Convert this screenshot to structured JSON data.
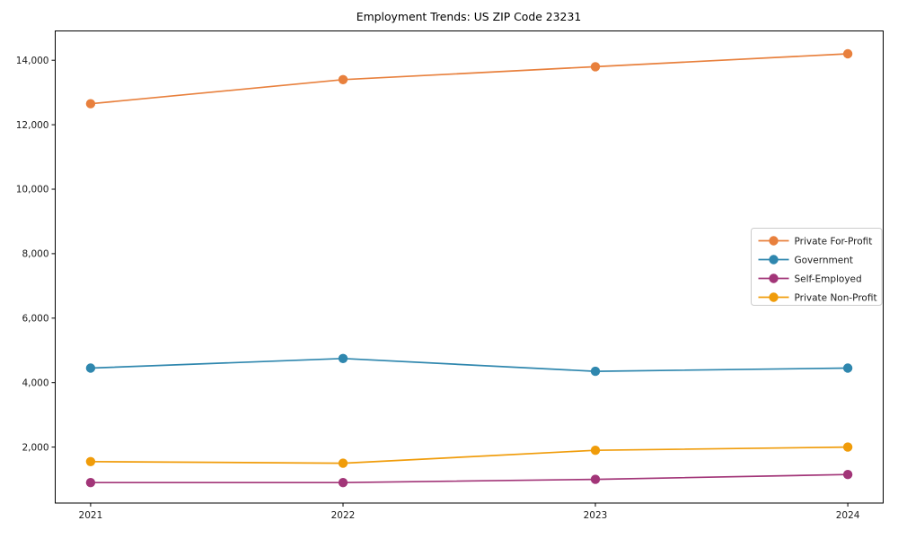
{
  "chart_data": {
    "type": "line",
    "title": "Employment Trends: US ZIP Code 23231",
    "x": [
      2021,
      2022,
      2023,
      2024
    ],
    "x_labels": [
      "2021",
      "2022",
      "2023",
      "2024"
    ],
    "series": [
      {
        "name": "Private For-Profit",
        "color": "#e8803d",
        "values": [
          12650,
          13400,
          13800,
          14200
        ]
      },
      {
        "name": "Government",
        "color": "#2f87ae",
        "values": [
          4450,
          4750,
          4350,
          4450
        ]
      },
      {
        "name": "Self-Employed",
        "color": "#a23578",
        "values": [
          900,
          900,
          1000,
          1150
        ]
      },
      {
        "name": "Private Non-Profit",
        "color": "#f09c0a",
        "values": [
          1550,
          1500,
          1900,
          2000
        ]
      }
    ],
    "yticks": [
      2000,
      4000,
      6000,
      8000,
      10000,
      12000,
      14000
    ],
    "ytick_labels": [
      "2,000",
      "4,000",
      "6,000",
      "8,000",
      "10,000",
      "12,000",
      "14,000"
    ],
    "xlim": [
      2020.86,
      2024.14
    ],
    "ylim": [
      265,
      14910
    ],
    "grid": false,
    "legend_position": "right-center",
    "marker": "circle",
    "axis_color": "#000000",
    "text_color": "#1a1a1a",
    "legend_border_color": "#cccccc",
    "legend_bg_color": "#ffffff"
  }
}
